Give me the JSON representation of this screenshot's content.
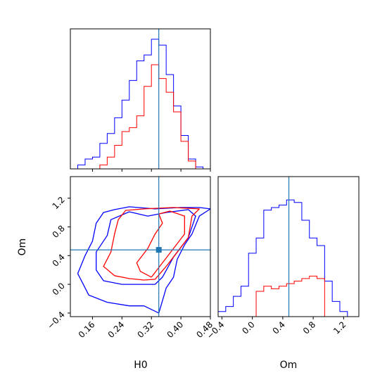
{
  "chart_data": [
    {
      "panel": "H0 marginal",
      "type": "histogram",
      "xlim": [
        0.1,
        0.48
      ],
      "truth": 0.34,
      "bin_edges": [
        0.1,
        0.12,
        0.14,
        0.16,
        0.18,
        0.2,
        0.22,
        0.24,
        0.26,
        0.28,
        0.3,
        0.32,
        0.34,
        0.36,
        0.38,
        0.4,
        0.42,
        0.44,
        0.46,
        0.48
      ],
      "series": [
        {
          "color": "#0000ff",
          "values": [
            0,
            2,
            5,
            6,
            13,
            18,
            26,
            35,
            45,
            55,
            58,
            66,
            63,
            48,
            32,
            17,
            5,
            1,
            0
          ]
        },
        {
          "color": "#ff0000",
          "values": [
            0,
            0,
            0,
            0,
            2,
            6,
            12,
            19,
            21,
            27,
            42,
            53,
            46,
            39,
            29,
            14,
            4,
            0,
            0
          ]
        }
      ],
      "xticks": [
        0.16,
        0.24,
        0.32,
        0.4,
        0.48
      ],
      "show_tick_labels": false
    },
    {
      "panel": "H0 vs Om",
      "type": "contour",
      "xlabel": "H0",
      "ylabel": "Om",
      "xlim": [
        0.1,
        0.48
      ],
      "ylim": [
        -0.45,
        1.5
      ],
      "truth": {
        "x": 0.34,
        "y": 0.48
      },
      "xticks": [
        0.16,
        0.24,
        0.32,
        0.4,
        0.48
      ],
      "xtick_labels": [
        "0.16",
        "0.24",
        "0.32",
        "0.40",
        "0.48"
      ],
      "yticks": [
        -0.4,
        0.0,
        0.4,
        0.8,
        1.2
      ],
      "ytick_labels": [
        "−0.4",
        "0.0",
        "0.4",
        "0.8",
        "1.2"
      ],
      "series": [
        {
          "color": "#0000ff",
          "contours": [
            [
              [
                0.3,
                -0.3
              ],
              [
                0.34,
                -0.4
              ],
              [
                0.36,
                -0.05
              ],
              [
                0.38,
                0.1
              ],
              [
                0.39,
                0.35
              ],
              [
                0.41,
                0.55
              ],
              [
                0.43,
                0.7
              ],
              [
                0.45,
                0.95
              ],
              [
                0.48,
                1.05
              ],
              [
                0.45,
                1.07
              ],
              [
                0.4,
                1.07
              ],
              [
                0.33,
                1.05
              ],
              [
                0.26,
                1.08
              ],
              [
                0.22,
                1.04
              ],
              [
                0.19,
                1.0
              ],
              [
                0.17,
                0.85
              ],
              [
                0.16,
                0.6
              ],
              [
                0.14,
                0.4
              ],
              [
                0.12,
                0.15
              ],
              [
                0.15,
                -0.15
              ],
              [
                0.2,
                -0.25
              ],
              [
                0.26,
                -0.3
              ],
              [
                0.3,
                -0.3
              ]
            ],
            [
              [
                0.33,
                0.0
              ],
              [
                0.35,
                0.1
              ],
              [
                0.38,
                0.38
              ],
              [
                0.42,
                0.65
              ],
              [
                0.44,
                0.95
              ],
              [
                0.42,
                1.04
              ],
              [
                0.36,
                1.0
              ],
              [
                0.31,
                0.95
              ],
              [
                0.26,
                1.01
              ],
              [
                0.21,
                0.9
              ],
              [
                0.2,
                0.68
              ],
              [
                0.17,
                0.45
              ],
              [
                0.17,
                0.2
              ],
              [
                0.19,
                0.05
              ],
              [
                0.24,
                0.0
              ],
              [
                0.29,
                0.0
              ],
              [
                0.33,
                0.0
              ]
            ]
          ]
        },
        {
          "color": "#ff0000",
          "contours": [
            [
              [
                0.26,
                0.08
              ],
              [
                0.3,
                0.06
              ],
              [
                0.33,
                0.07
              ],
              [
                0.36,
                0.25
              ],
              [
                0.39,
                0.45
              ],
              [
                0.42,
                0.65
              ],
              [
                0.43,
                0.95
              ],
              [
                0.45,
                1.05
              ],
              [
                0.38,
                1.07
              ],
              [
                0.3,
                1.05
              ],
              [
                0.25,
                1.03
              ],
              [
                0.23,
                0.9
              ],
              [
                0.22,
                0.7
              ],
              [
                0.21,
                0.45
              ],
              [
                0.19,
                0.25
              ],
              [
                0.22,
                0.12
              ],
              [
                0.26,
                0.08
              ]
            ],
            [
              [
                0.32,
                0.1
              ],
              [
                0.35,
                0.3
              ],
              [
                0.38,
                0.5
              ],
              [
                0.41,
                0.7
              ],
              [
                0.41,
                0.95
              ],
              [
                0.37,
                1.02
              ],
              [
                0.34,
                0.98
              ],
              [
                0.35,
                0.85
              ],
              [
                0.33,
                0.7
              ],
              [
                0.31,
                0.5
              ],
              [
                0.28,
                0.3
              ],
              [
                0.29,
                0.18
              ],
              [
                0.32,
                0.1
              ]
            ]
          ]
        }
      ]
    },
    {
      "panel": "Om marginal",
      "type": "histogram",
      "xlabel": "Om",
      "xlim": [
        -0.45,
        1.4
      ],
      "truth": 0.48,
      "bin_edges": [
        -0.45,
        -0.35,
        -0.25,
        -0.15,
        -0.05,
        0.05,
        0.15,
        0.25,
        0.35,
        0.45,
        0.55,
        0.65,
        0.75,
        0.85,
        0.95,
        1.05,
        1.15,
        1.25,
        1.35
      ],
      "series": [
        {
          "color": "#0000ff",
          "values": [
            2,
            4,
            8,
            12,
            25,
            31,
            42,
            43,
            44,
            46,
            45,
            38,
            31,
            28,
            14,
            6,
            2,
            0
          ]
        },
        {
          "color": "#ff0000",
          "values": [
            0,
            0,
            0,
            0,
            0,
            10,
            12,
            11,
            12,
            13,
            14,
            15,
            16,
            15,
            0,
            0,
            0,
            0
          ]
        }
      ],
      "xticks": [
        -0.4,
        0.0,
        0.4,
        0.8,
        1.2
      ],
      "xtick_labels": [
        "−0.4",
        "0.0",
        "0.4",
        "0.8",
        "1.2"
      ]
    }
  ],
  "colors": {
    "truth": "#1f77b4",
    "sample_a": "#0000ff",
    "sample_b": "#ff0000"
  }
}
